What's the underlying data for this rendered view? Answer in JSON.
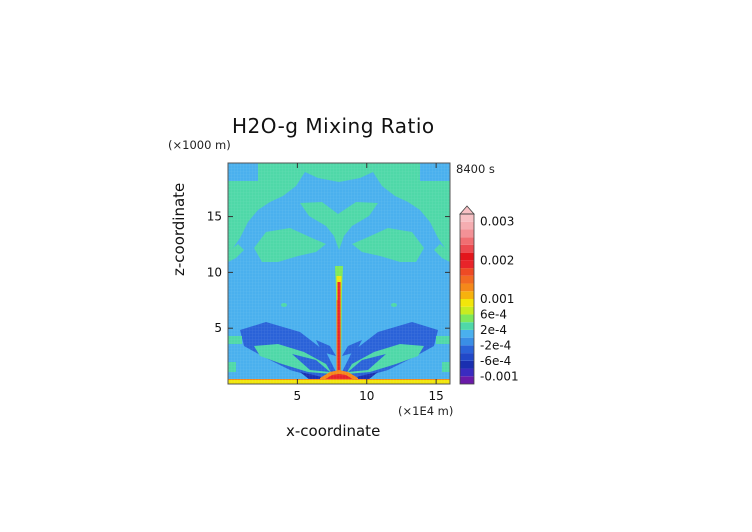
{
  "title": "H2O-g Mixing Ratio",
  "time_label": "8400 s",
  "y_unit_label": "(×1000 m)",
  "x_unit_label": "(×1E4 m)",
  "colors": {
    "background_field": "#4ab0ee",
    "upper_band": "#4fd8a8",
    "negative_band": "#2a62d8",
    "deep_negative": "#1a2fb0",
    "core": "#e8242a",
    "surface": "#f2e60a"
  },
  "chart_data": {
    "type": "heatmap",
    "title": "H2O-g Mixing Ratio",
    "xlabel": "x-coordinate",
    "ylabel": "z-coordinate",
    "xlim": [
      0,
      16
    ],
    "ylim": [
      0,
      19.8
    ],
    "x_ticks": [
      5,
      10,
      15
    ],
    "y_ticks": [
      5,
      10,
      15
    ],
    "colorbar": {
      "labels": [
        "0.003",
        "0.002",
        "0.001",
        "6e-4",
        "2e-4",
        "-2e-4",
        "-6e-4",
        "-0.001"
      ],
      "levels": [
        {
          "value": -0.0012,
          "color": "#6a1aa8"
        },
        {
          "value": -0.001,
          "color": "#3a2bc0"
        },
        {
          "value": -0.0008,
          "color": "#1a2fb0"
        },
        {
          "value": -0.0006,
          "color": "#2148c8"
        },
        {
          "value": -0.0004,
          "color": "#2a62d8"
        },
        {
          "value": -0.0002,
          "color": "#3a8ee6"
        },
        {
          "value": 0.0,
          "color": "#4ab0ee"
        },
        {
          "value": 0.0002,
          "color": "#4fd8a8"
        },
        {
          "value": 0.0004,
          "color": "#7ee85a"
        },
        {
          "value": 0.0006,
          "color": "#c8ec20"
        },
        {
          "value": 0.0008,
          "color": "#f2e60a"
        },
        {
          "value": 0.001,
          "color": "#f7b20d"
        },
        {
          "value": 0.0012,
          "color": "#f5881a"
        },
        {
          "value": 0.0014,
          "color": "#f26a22"
        },
        {
          "value": 0.0016,
          "color": "#ee4a24"
        },
        {
          "value": 0.0018,
          "color": "#e8242a"
        },
        {
          "value": 0.002,
          "color": "#e3161c"
        },
        {
          "value": 0.0022,
          "color": "#ec4a50"
        },
        {
          "value": 0.0024,
          "color": "#f06e72"
        },
        {
          "value": 0.0026,
          "color": "#f39196"
        },
        {
          "value": 0.0028,
          "color": "#f5adb1"
        },
        {
          "value": 0.003,
          "color": "#f7c0c4"
        }
      ]
    }
  }
}
